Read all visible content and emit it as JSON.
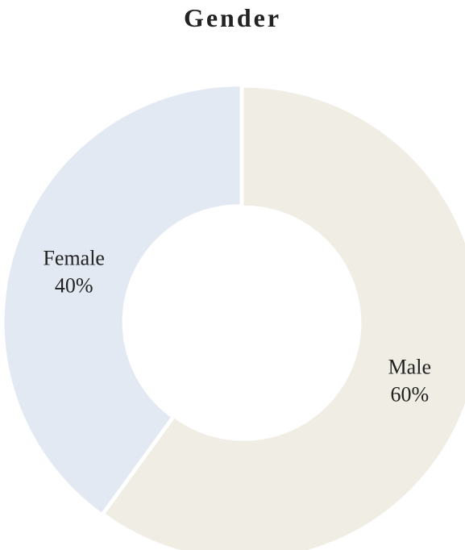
{
  "chart_data": {
    "type": "pie",
    "title": "Gender",
    "categories": [
      "Male",
      "Female"
    ],
    "values": [
      60,
      40
    ],
    "labels": [
      "60%",
      "40%"
    ],
    "colors": [
      "#f0ede4",
      "#e2e9f2"
    ],
    "donut": true,
    "legend": "none"
  }
}
